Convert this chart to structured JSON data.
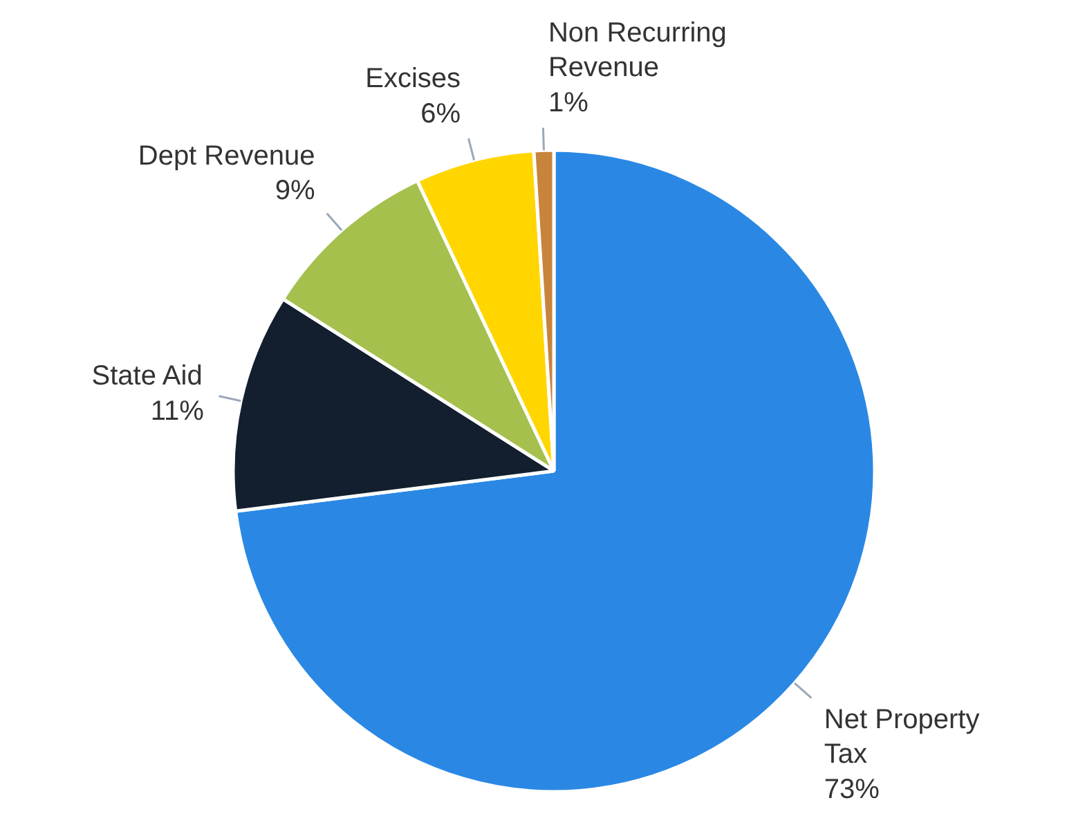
{
  "chart_data": {
    "type": "pie",
    "categories": [
      "Net Property Tax",
      "State Aid",
      "Dept Revenue",
      "Excises",
      "Non Recurring Revenue"
    ],
    "values": [
      73,
      11,
      9,
      6,
      1
    ],
    "value_labels": [
      "73%",
      "11%",
      "9%",
      "6%",
      "1%"
    ],
    "colors": [
      "#2a88e4",
      "#131f2e",
      "#a5c04d",
      "#ffd600",
      "#c8843a"
    ]
  }
}
